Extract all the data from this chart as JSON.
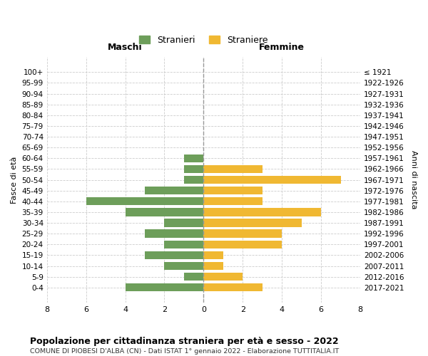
{
  "age_groups": [
    "100+",
    "95-99",
    "90-94",
    "85-89",
    "80-84",
    "75-79",
    "70-74",
    "65-69",
    "60-64",
    "55-59",
    "50-54",
    "45-49",
    "40-44",
    "35-39",
    "30-34",
    "25-29",
    "20-24",
    "15-19",
    "10-14",
    "5-9",
    "0-4"
  ],
  "birth_years": [
    "≤ 1921",
    "1922-1926",
    "1927-1931",
    "1932-1936",
    "1937-1941",
    "1942-1946",
    "1947-1951",
    "1952-1956",
    "1957-1961",
    "1962-1966",
    "1967-1971",
    "1972-1976",
    "1977-1981",
    "1982-1986",
    "1987-1991",
    "1992-1996",
    "1997-2001",
    "2002-2006",
    "2007-2011",
    "2012-2016",
    "2017-2021"
  ],
  "maschi": [
    0,
    0,
    0,
    0,
    0,
    0,
    0,
    0,
    1,
    1,
    1,
    3,
    6,
    4,
    2,
    3,
    2,
    3,
    2,
    1,
    4
  ],
  "femmine": [
    0,
    0,
    0,
    0,
    0,
    0,
    0,
    0,
    0,
    3,
    7,
    3,
    3,
    6,
    5,
    4,
    4,
    1,
    1,
    2,
    3
  ],
  "maschi_color": "#6d9e5a",
  "femmine_color": "#f0b832",
  "title": "Popolazione per cittadinanza straniera per età e sesso - 2022",
  "subtitle": "COMUNE DI PIOBESI D'ALBA (CN) - Dati ISTAT 1° gennaio 2022 - Elaborazione TUTTITALIA.IT",
  "legend_maschi": "Stranieri",
  "legend_femmine": "Straniere",
  "xlabel_left": "Maschi",
  "xlabel_right": "Femmine",
  "ylabel_left": "Fasce di età",
  "ylabel_right": "Anni di nascita",
  "xlim": 8,
  "background_color": "#ffffff",
  "grid_color": "#cccccc"
}
